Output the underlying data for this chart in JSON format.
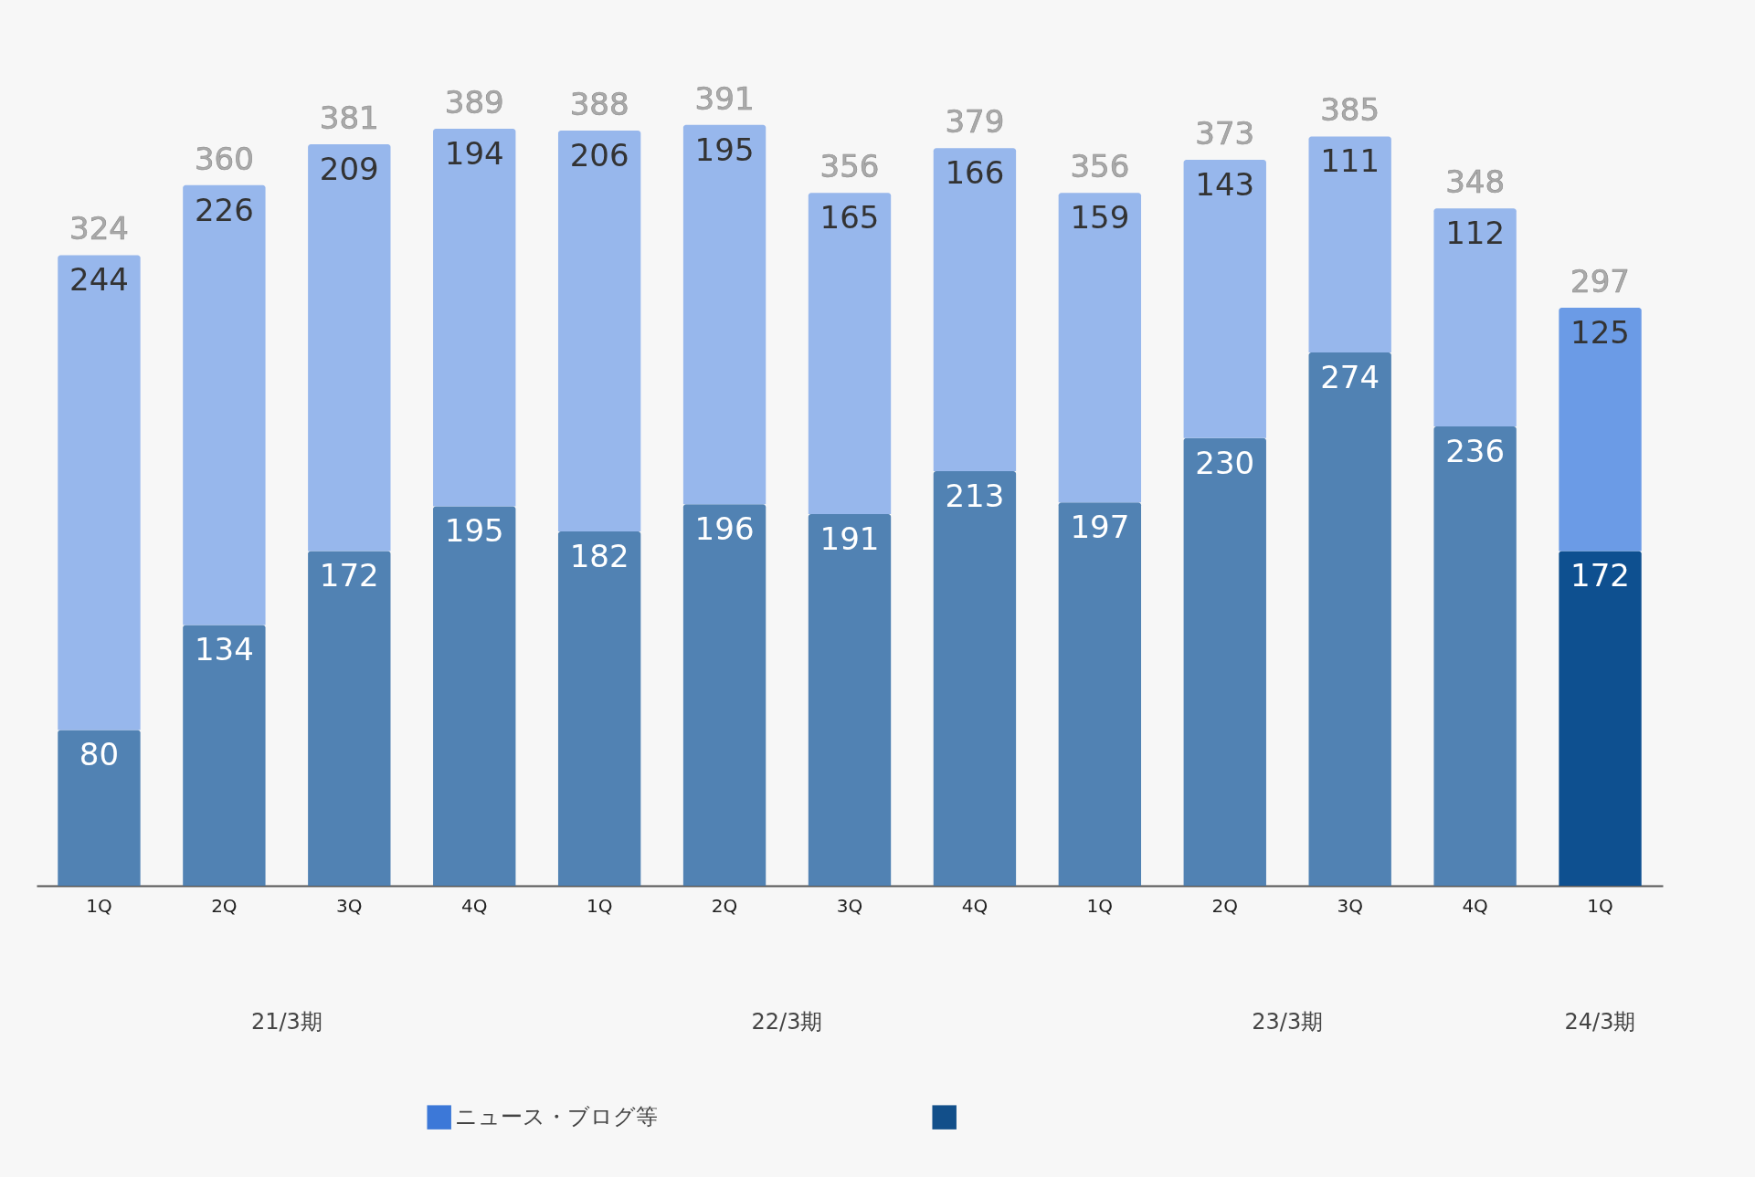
{
  "chart_data": {
    "type": "bar",
    "stacked": true,
    "data_labels": true,
    "legend": "bottom",
    "categories": [
      "1Q",
      "2Q",
      "3Q",
      "4Q",
      "1Q",
      "2Q",
      "3Q",
      "4Q",
      "1Q",
      "2Q",
      "3Q",
      "4Q",
      "1Q"
    ],
    "annotations": [
      "21/3期",
      "22/3期",
      "23/3期",
      "24/3期"
    ],
    "series": [
      {
        "color": "#124f8a",
        "colors": [
          "#5182b3",
          "#5182b3",
          "#5182b3",
          "#5182b3",
          "#5182b3",
          "#5182b3",
          "#5182b3",
          "#5182b3",
          "#5182b3",
          "#5182b3",
          "#5182b3",
          "#5182b3",
          "#0e5090"
        ],
        "values": [
          80,
          134,
          172,
          195,
          182,
          196,
          191,
          213,
          197,
          230,
          274,
          236,
          172
        ]
      },
      {
        "name": "ニュース・ブログ等",
        "color": "#3c78d8",
        "colors": [
          "#97b7ec",
          "#97b7ec",
          "#97b7ec",
          "#97b7ec",
          "#97b7ec",
          "#97b7ec",
          "#97b7ec",
          "#97b7ec",
          "#97b7ec",
          "#97b7ec",
          "#97b7ec",
          "#97b7ec",
          "#6b9be6"
        ],
        "values": [
          244,
          226,
          209,
          194,
          206,
          195,
          165,
          166,
          159,
          143,
          111,
          112,
          125
        ]
      }
    ],
    "totals": [
      "324",
      "360",
      "381",
      "389",
      "388",
      "391",
      "356",
      "379",
      "356",
      "373",
      "385",
      "348",
      "297"
    ]
  }
}
